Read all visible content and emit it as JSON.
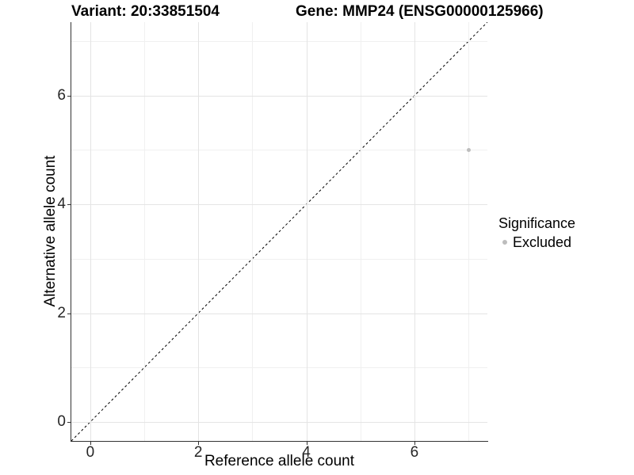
{
  "chart_data": {
    "type": "scatter",
    "title_left": "Variant: 20:33851504",
    "title_right": "Gene: MMP24 (ENSG00000125966)",
    "xlabel": "Reference allele count",
    "ylabel": "Alternative allele count",
    "xlim": [
      -0.35,
      7.35
    ],
    "ylim": [
      -0.35,
      7.35
    ],
    "xticks": [
      0,
      2,
      4,
      6
    ],
    "yticks": [
      0,
      2,
      4,
      6
    ],
    "minor_xticks": [
      1,
      3,
      5,
      7
    ],
    "minor_yticks": [
      1,
      3,
      5,
      7
    ],
    "grid": true,
    "points": [
      {
        "x": 7,
        "y": 5,
        "series": "Excluded"
      }
    ],
    "reference_line": {
      "type": "identity",
      "style": "dashed",
      "color": "#000000",
      "from": [
        -0.35,
        -0.35
      ],
      "to": [
        7.35,
        7.35
      ]
    },
    "legend": {
      "title": "Significance",
      "position": "right",
      "items": [
        {
          "label": "Excluded",
          "color": "#bdbdbd"
        }
      ]
    },
    "colors": {
      "point": "#bdbdbd",
      "grid_major": "#e4e4e4",
      "grid_minor": "#f0f0f0",
      "axis_line": "#333333",
      "text": "#000000"
    }
  }
}
